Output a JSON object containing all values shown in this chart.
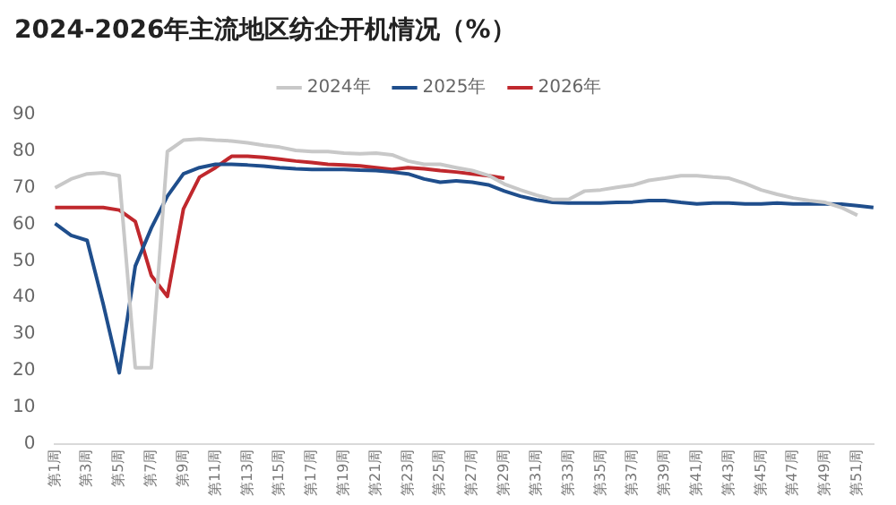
{
  "chart_data": {
    "type": "line",
    "title": "2024-2026年主流地区纺企开机情况（%）",
    "categories": [
      "第1周",
      null,
      "第3周",
      null,
      "第5周",
      null,
      "第7周",
      null,
      "第9周",
      null,
      "第11周",
      null,
      "第13周",
      null,
      "第15周",
      null,
      "第17周",
      null,
      "第19周",
      null,
      "第21周",
      null,
      "第23周",
      null,
      "第25周",
      null,
      "第27周",
      null,
      "第29周",
      null,
      "第31周",
      null,
      "第33周",
      null,
      "第35周",
      null,
      "第37周",
      null,
      "第39周",
      null,
      "第41周",
      null,
      "第43周",
      null,
      "第45周",
      null,
      "第47周",
      null,
      "第49周",
      null,
      "第51周",
      null
    ],
    "series": [
      {
        "name": "2024年",
        "color": "#c8c8c8",
        "values": [
          70,
          72.4,
          73.8,
          74.1,
          73.3,
          20.8,
          20.8,
          79.9,
          83,
          83.3,
          83,
          82.8,
          82.3,
          81.6,
          81.1,
          80.2,
          79.9,
          79.9,
          79.5,
          79.3,
          79.5,
          79,
          77.3,
          76.4,
          76.4,
          75.5,
          74.7,
          73.4,
          71,
          69.4,
          68,
          66.8,
          66.8,
          69.1,
          69.4,
          70.1,
          70.7,
          72,
          72.6,
          73.3,
          73.3,
          72.9,
          72.6,
          71.2,
          69.4,
          68.2,
          67.2,
          66.5,
          66,
          64.6,
          62.5,
          null
        ]
      },
      {
        "name": "2025年",
        "color": "#1f4e8c",
        "values": [
          60.2,
          57,
          55.6,
          38.2,
          19.4,
          48.6,
          59,
          67.7,
          73.8,
          75.5,
          76.4,
          76.4,
          76.2,
          75.9,
          75.5,
          75.2,
          75,
          75,
          75,
          74.8,
          74.7,
          74.3,
          73.8,
          72.4,
          71.5,
          71.9,
          71.5,
          70.8,
          69.1,
          67.7,
          66.7,
          66,
          65.8,
          65.8,
          65.8,
          66,
          66.1,
          66.5,
          66.5,
          66,
          65.6,
          65.8,
          65.8,
          65.6,
          65.6,
          65.8,
          65.6,
          65.6,
          65.6,
          65.5,
          65.1,
          64.6
        ]
      },
      {
        "name": "2026年",
        "color": "#c0282d",
        "values": [
          64.6,
          64.6,
          64.6,
          64.6,
          63.9,
          60.8,
          46,
          40.3,
          64.2,
          72.9,
          75.5,
          78.6,
          78.6,
          78.3,
          77.8,
          77.3,
          76.9,
          76.4,
          76.2,
          76,
          75.5,
          75,
          75.5,
          75.2,
          74.7,
          74.3,
          73.8,
          73.3,
          72.6,
          null,
          null,
          null,
          null,
          null,
          null,
          null,
          null,
          null,
          null,
          null,
          null,
          null,
          null,
          null,
          null,
          null,
          null,
          null,
          null,
          null,
          null,
          null
        ]
      }
    ],
    "ylim": [
      0,
      90
    ],
    "yticks": [
      0,
      10,
      20,
      30,
      40,
      50,
      60,
      70,
      80,
      90
    ],
    "grid": false,
    "legend": "top",
    "marker": "none",
    "line_style": "solid"
  }
}
